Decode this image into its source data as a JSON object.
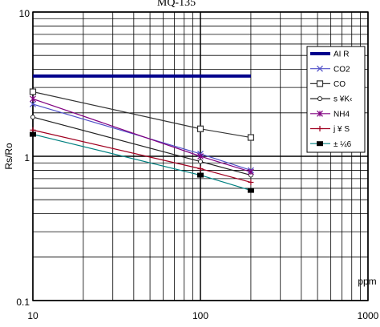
{
  "chart_data": {
    "type": "line",
    "title": "MQ-135",
    "y_label": "Rs/Ro",
    "x_label": "ppm",
    "x_scale": "log",
    "y_scale": "log",
    "grid": true,
    "minor_grid": true,
    "legend": "upper right",
    "xlim": [
      10,
      1000
    ],
    "ylim": [
      0.1,
      10
    ],
    "xticks": [
      10,
      100,
      1000
    ],
    "yticks": [
      0.1,
      1,
      10
    ],
    "series": [
      {
        "name": "AI R",
        "color": "#00008b",
        "marker": "none",
        "x": [
          10,
          200
        ],
        "values": [
          3.6,
          3.6
        ]
      },
      {
        "name": "CO2",
        "color": "#5050c8",
        "marker": "x",
        "x": [
          10,
          100,
          200
        ],
        "values": [
          2.3,
          1.04,
          0.8
        ]
      },
      {
        "name": "CO",
        "color": "#333333",
        "marker": "square",
        "x": [
          10,
          100,
          200
        ],
        "values": [
          2.8,
          1.55,
          1.35
        ]
      },
      {
        "name": "s ¥K‹",
        "color": "#222222",
        "marker": "circle",
        "x": [
          10,
          100,
          200
        ],
        "values": [
          1.87,
          0.92,
          0.74
        ]
      },
      {
        "name": "NH4",
        "color": "#800080",
        "marker": "star",
        "x": [
          10,
          100,
          200
        ],
        "values": [
          2.5,
          1.0,
          0.78
        ]
      },
      {
        "name": "j ¥ S",
        "color": "#a00020",
        "marker": "plus",
        "x": [
          10,
          100,
          200
        ],
        "values": [
          1.52,
          0.82,
          0.66
        ]
      },
      {
        "name": "± ¼6",
        "color": "#008080",
        "marker": "filled-square",
        "x": [
          10,
          100,
          200
        ],
        "values": [
          1.42,
          0.74,
          0.58
        ]
      }
    ]
  }
}
